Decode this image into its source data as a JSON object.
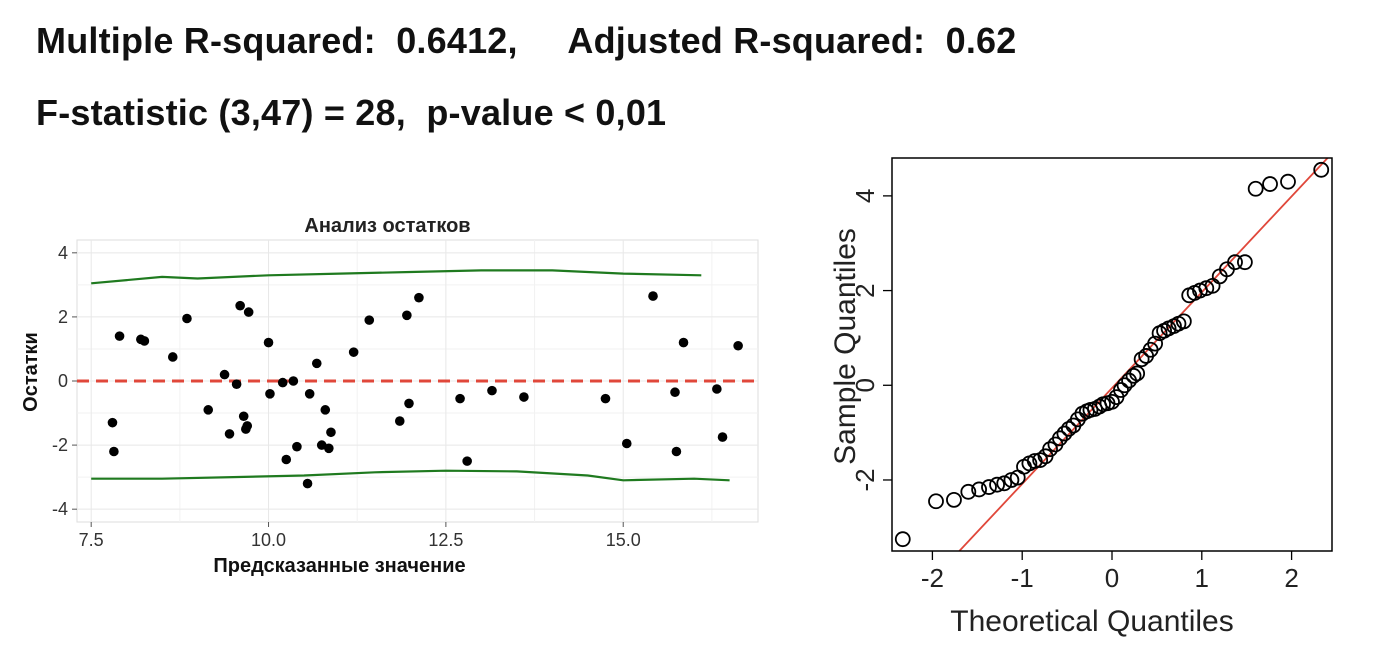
{
  "stats": {
    "line1": "Multiple R-squared:  0.6412,     Adjusted R-squared:  0.62",
    "line2": "F-statistic (3,47) = 28,  p-value < 0,01"
  },
  "chart_data": [
    {
      "type": "scatter",
      "title": "Анализ остатков",
      "xlabel": "Предсказанные значение",
      "ylabel": "Остатки",
      "xlim": [
        7.3,
        16.9
      ],
      "ylim": [
        -4.4,
        4.4
      ],
      "xticks": [
        7.5,
        10.0,
        12.5,
        15.0
      ],
      "xtick_labels": [
        "7.5",
        "10.0",
        "12.5",
        "15.0"
      ],
      "yticks": [
        -4,
        -2,
        0,
        2,
        4
      ],
      "ytick_labels": [
        "-4",
        "-2",
        "0",
        "2",
        "4"
      ],
      "grid": true,
      "point_color": "#000000",
      "reference_line": {
        "y": 0,
        "style": "dashed",
        "color": "#e0473a"
      },
      "band_color": "#1f7a1f",
      "upper_band": [
        [
          7.5,
          3.05
        ],
        [
          8.0,
          3.15
        ],
        [
          8.5,
          3.25
        ],
        [
          9.0,
          3.2
        ],
        [
          10.0,
          3.3
        ],
        [
          11.0,
          3.35
        ],
        [
          12.0,
          3.4
        ],
        [
          13.0,
          3.45
        ],
        [
          14.0,
          3.45
        ],
        [
          15.0,
          3.35
        ],
        [
          16.1,
          3.3
        ]
      ],
      "lower_band": [
        [
          7.5,
          -3.05
        ],
        [
          8.5,
          -3.05
        ],
        [
          9.5,
          -3.0
        ],
        [
          10.5,
          -2.95
        ],
        [
          11.5,
          -2.85
        ],
        [
          12.5,
          -2.8
        ],
        [
          13.5,
          -2.82
        ],
        [
          14.5,
          -2.95
        ],
        [
          15.0,
          -3.1
        ],
        [
          16.0,
          -3.05
        ],
        [
          16.5,
          -3.1
        ]
      ],
      "points": [
        [
          7.8,
          -1.3
        ],
        [
          7.82,
          -2.2
        ],
        [
          7.9,
          1.4
        ],
        [
          8.2,
          1.3
        ],
        [
          8.25,
          1.25
        ],
        [
          8.65,
          0.75
        ],
        [
          8.85,
          1.95
        ],
        [
          9.15,
          -0.9
        ],
        [
          9.38,
          0.2
        ],
        [
          9.45,
          -1.65
        ],
        [
          9.55,
          -0.1
        ],
        [
          9.6,
          2.35
        ],
        [
          9.65,
          -1.1
        ],
        [
          9.68,
          -1.5
        ],
        [
          9.7,
          -1.4
        ],
        [
          9.72,
          2.15
        ],
        [
          10.0,
          1.2
        ],
        [
          10.02,
          -0.4
        ],
        [
          10.2,
          -0.05
        ],
        [
          10.25,
          -2.45
        ],
        [
          10.35,
          0.0
        ],
        [
          10.4,
          -2.05
        ],
        [
          10.55,
          -3.2
        ],
        [
          10.58,
          -0.4
        ],
        [
          10.68,
          0.55
        ],
        [
          10.75,
          -2.0
        ],
        [
          10.8,
          -0.9
        ],
        [
          10.85,
          -2.1
        ],
        [
          10.88,
          -1.6
        ],
        [
          11.2,
          0.9
        ],
        [
          11.42,
          1.9
        ],
        [
          11.85,
          -1.25
        ],
        [
          11.95,
          2.05
        ],
        [
          11.98,
          -0.7
        ],
        [
          12.12,
          2.6
        ],
        [
          12.7,
          -0.55
        ],
        [
          12.8,
          -2.5
        ],
        [
          13.15,
          -0.3
        ],
        [
          13.6,
          -0.5
        ],
        [
          14.75,
          -0.55
        ],
        [
          15.05,
          -1.95
        ],
        [
          15.42,
          2.65
        ],
        [
          15.73,
          -0.35
        ],
        [
          15.75,
          -2.2
        ],
        [
          15.85,
          1.2
        ],
        [
          16.32,
          -0.25
        ],
        [
          16.4,
          -1.75
        ],
        [
          16.62,
          1.1
        ]
      ]
    },
    {
      "type": "scatter",
      "title": "",
      "xlabel": "Theoretical Quantiles",
      "ylabel": "Sample Quantiles",
      "xlim": [
        -2.45,
        2.45
      ],
      "ylim": [
        -3.5,
        4.8
      ],
      "xticks": [
        -2,
        -1,
        0,
        1,
        2
      ],
      "xtick_labels": [
        "-2",
        "-1",
        "0",
        "1",
        "2"
      ],
      "yticks": [
        -2,
        0,
        2,
        4
      ],
      "ytick_labels": [
        "-2",
        "0",
        "2",
        "4"
      ],
      "grid": false,
      "marker": "open-circle",
      "reference_line": {
        "from": [
          -1.7,
          -3.5
        ],
        "to": [
          2.45,
          4.9
        ],
        "color": "#e0473a"
      },
      "points": [
        [
          -2.33,
          -3.25
        ],
        [
          -1.96,
          -2.45
        ],
        [
          -1.76,
          -2.42
        ],
        [
          -1.6,
          -2.25
        ],
        [
          -1.48,
          -2.2
        ],
        [
          -1.37,
          -2.15
        ],
        [
          -1.28,
          -2.1
        ],
        [
          -1.2,
          -2.07
        ],
        [
          -1.12,
          -2.0
        ],
        [
          -1.05,
          -1.95
        ],
        [
          -0.98,
          -1.72
        ],
        [
          -0.92,
          -1.65
        ],
        [
          -0.86,
          -1.6
        ],
        [
          -0.8,
          -1.58
        ],
        [
          -0.74,
          -1.5
        ],
        [
          -0.69,
          -1.35
        ],
        [
          -0.63,
          -1.25
        ],
        [
          -0.58,
          -1.12
        ],
        [
          -0.53,
          -1.02
        ],
        [
          -0.48,
          -0.92
        ],
        [
          -0.43,
          -0.85
        ],
        [
          -0.38,
          -0.72
        ],
        [
          -0.33,
          -0.6
        ],
        [
          -0.28,
          -0.55
        ],
        [
          -0.24,
          -0.52
        ],
        [
          -0.19,
          -0.5
        ],
        [
          -0.14,
          -0.45
        ],
        [
          -0.1,
          -0.4
        ],
        [
          -0.05,
          -0.38
        ],
        [
          0.0,
          -0.35
        ],
        [
          0.05,
          -0.25
        ],
        [
          0.1,
          -0.1
        ],
        [
          0.14,
          0.0
        ],
        [
          0.19,
          0.1
        ],
        [
          0.24,
          0.2
        ],
        [
          0.28,
          0.25
        ],
        [
          0.33,
          0.55
        ],
        [
          0.38,
          0.62
        ],
        [
          0.43,
          0.75
        ],
        [
          0.48,
          0.88
        ],
        [
          0.53,
          1.1
        ],
        [
          0.58,
          1.15
        ],
        [
          0.63,
          1.2
        ],
        [
          0.69,
          1.25
        ],
        [
          0.74,
          1.3
        ],
        [
          0.8,
          1.35
        ],
        [
          0.86,
          1.9
        ],
        [
          0.92,
          1.95
        ],
        [
          0.98,
          2.0
        ],
        [
          1.05,
          2.05
        ],
        [
          1.12,
          2.1
        ],
        [
          1.2,
          2.3
        ],
        [
          1.28,
          2.45
        ],
        [
          1.37,
          2.6
        ],
        [
          1.48,
          2.6
        ],
        [
          1.6,
          4.15
        ],
        [
          1.76,
          4.25
        ],
        [
          1.96,
          4.3
        ],
        [
          2.33,
          4.55
        ]
      ]
    }
  ]
}
